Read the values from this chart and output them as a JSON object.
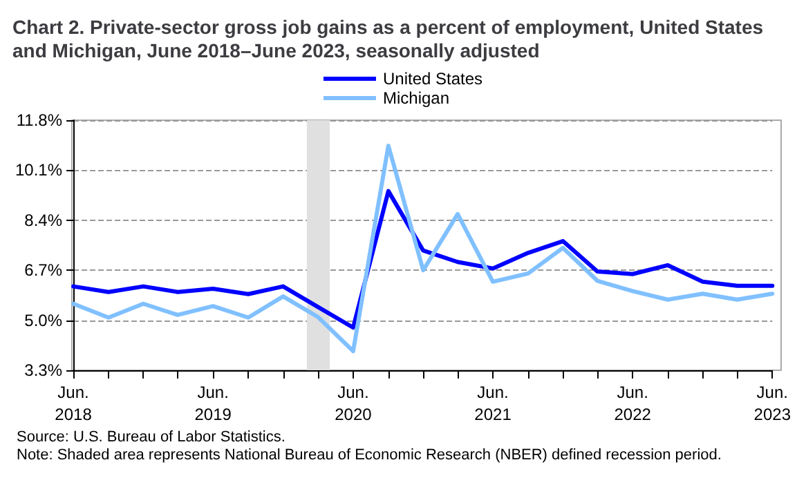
{
  "chart_data": {
    "type": "line",
    "title": "Chart 2. Private-sector gross job gains as a percent of employment, United States and Michigan, June 2018–June 2023, seasonally adjusted",
    "x": [
      "2018-06",
      "2018-09",
      "2018-12",
      "2019-03",
      "2019-06",
      "2019-09",
      "2019-12",
      "2020-03",
      "2020-06",
      "2020-09",
      "2020-12",
      "2021-03",
      "2021-06",
      "2021-09",
      "2021-12",
      "2022-03",
      "2022-06",
      "2022-09",
      "2022-12",
      "2023-03",
      "2023-06"
    ],
    "series": [
      {
        "name": "United States",
        "color": "#0000ff",
        "values": [
          6.15,
          5.96,
          6.15,
          5.96,
          6.07,
          5.89,
          6.15,
          5.45,
          4.75,
          9.39,
          7.37,
          6.98,
          6.76,
          7.29,
          7.69,
          6.66,
          6.57,
          6.87,
          6.31,
          6.17,
          6.17
        ]
      },
      {
        "name": "Michigan",
        "color": "#80c0ff",
        "values": [
          5.56,
          5.09,
          5.56,
          5.18,
          5.48,
          5.09,
          5.81,
          5.11,
          3.95,
          10.93,
          6.7,
          8.61,
          6.31,
          6.59,
          7.46,
          6.34,
          5.99,
          5.7,
          5.9,
          5.7,
          5.9
        ]
      }
    ],
    "xlim": [
      "2018-06",
      "2023-06"
    ],
    "xticks": [
      {
        "value": "2018-06",
        "label": "Jun. 2018"
      },
      {
        "value": "2018-09",
        "label": null
      },
      {
        "value": "2018-12",
        "label": null
      },
      {
        "value": "2019-03",
        "label": null
      },
      {
        "value": "2019-06",
        "label": "Jun. 2019"
      },
      {
        "value": "2019-09",
        "label": null
      },
      {
        "value": "2019-12",
        "label": null
      },
      {
        "value": "2020-03",
        "label": null
      },
      {
        "value": "2020-06",
        "label": "Jun. 2020"
      },
      {
        "value": "2020-09",
        "label": null
      },
      {
        "value": "2020-12",
        "label": null
      },
      {
        "value": "2021-03",
        "label": null
      },
      {
        "value": "2021-06",
        "label": "Jun. 2021"
      },
      {
        "value": "2021-09",
        "label": null
      },
      {
        "value": "2021-12",
        "label": null
      },
      {
        "value": "2022-03",
        "label": null
      },
      {
        "value": "2022-06",
        "label": "Jun. 2022"
      },
      {
        "value": "2022-09",
        "label": null
      },
      {
        "value": "2022-12",
        "label": null
      },
      {
        "value": "2023-03",
        "label": null
      },
      {
        "value": "2023-06",
        "label": "Jun. 2023"
      }
    ],
    "ylim": [
      3.3,
      11.8
    ],
    "yticks": [
      {
        "value": 3.3,
        "label": "3.3%"
      },
      {
        "value": 5.0,
        "label": "5.0%"
      },
      {
        "value": 6.7,
        "label": "6.7%"
      },
      {
        "value": 8.4,
        "label": "8.4%"
      },
      {
        "value": 10.1,
        "label": "10.1%"
      },
      {
        "value": 11.8,
        "label": "11.8%"
      }
    ],
    "bands": [
      {
        "axis": "x",
        "from": "2020-02",
        "to": "2020-04",
        "color": "#e0e0e0"
      }
    ],
    "grid": "y",
    "legend": "top",
    "marker": "none",
    "line_style": "solid",
    "annotations": [
      "Source: U.S. Bureau of Labor Statistics.",
      "Note: Shaded area represents National Bureau of Economic Research (NBER) defined recession period."
    ]
  }
}
